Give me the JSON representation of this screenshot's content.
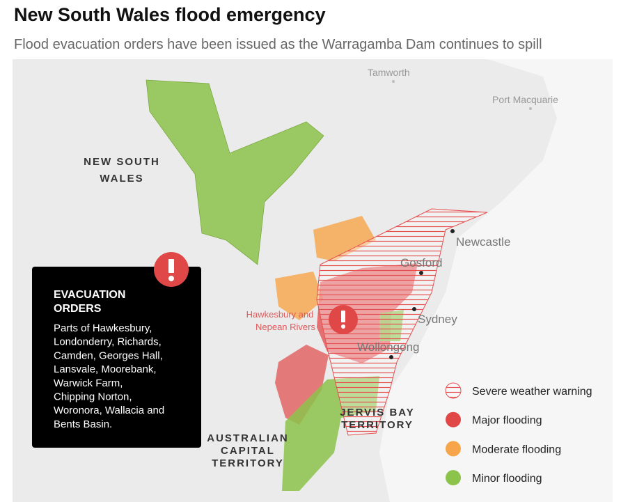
{
  "header": {
    "title": "New South Wales flood emergency",
    "subtitle": "Flood evacuation orders have been issued as the Warragamba Dam continues to spill"
  },
  "map": {
    "places": [
      "Tamworth",
      "Port Macquarie",
      "Newcastle",
      "Gosford",
      "Sydney",
      "Wollongong"
    ],
    "regions": [
      {
        "lines": [
          "NEW SOUTH",
          "WALES"
        ]
      },
      {
        "lines": [
          "JERVIS BAY",
          "TERRITORY"
        ]
      },
      {
        "lines": [
          "AUSTRALIAN",
          "CAPITAL",
          "TERRITORY"
        ]
      }
    ],
    "river_label": [
      "Hawkesbury and",
      "Nepean Rivers"
    ]
  },
  "callout": {
    "title_lines": [
      "EVACUATION",
      "ORDERS"
    ],
    "body_lines": [
      "Parts of Hawkesbury,",
      "Londonderry, Richards,",
      "Camden, Georges Hall,",
      "Lansvale, Moorebank,",
      "Warwick Farm,",
      "Chipping Norton,",
      "Woronora, Wallacia and",
      "Bents Basin."
    ]
  },
  "legend": [
    {
      "label": "Severe weather warning",
      "color": "#e65050"
    },
    {
      "label": "Major flooding",
      "color": "#e04848"
    },
    {
      "label": "Moderate flooding",
      "color": "#f7a54a"
    },
    {
      "label": "Minor flooding",
      "color": "#8cc34b"
    }
  ]
}
